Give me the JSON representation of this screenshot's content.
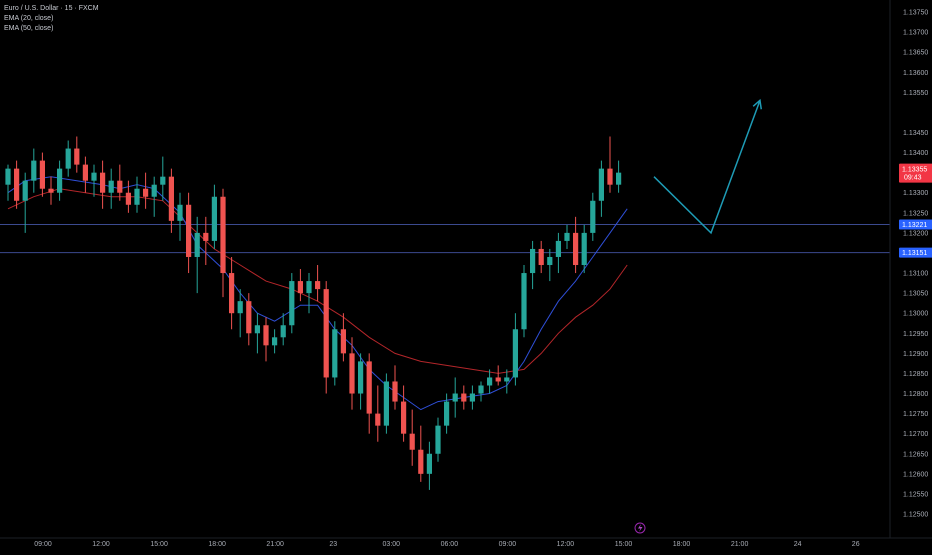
{
  "legend": {
    "symbol": "Euro / U.S. Dollar · 15 · FXCM",
    "ema20": "EMA (20, close)",
    "ema50": "EMA (50, close)"
  },
  "colors": {
    "background": "#000000",
    "up": "#26a69a",
    "down": "#ef5350",
    "ema20": "#2f4fd8",
    "ema50": "#b3262a",
    "hline": "#3b4a8f",
    "forecast": "#1e9bb5",
    "price_tag": "#f23645",
    "level_tag": "#2962ff"
  },
  "chart_data": {
    "type": "candlestick",
    "symbol": "Euro / U.S. Dollar",
    "interval": "15",
    "source": "FXCM",
    "ylim": [
      1.125,
      1.1376
    ],
    "y_ticks": [
      "1.13750",
      "1.13700",
      "1.13650",
      "1.13600",
      "1.13550",
      "1.13450",
      "1.13400",
      "1.13300",
      "1.13250",
      "1.13200",
      "1.13100",
      "1.13050",
      "1.13000",
      "1.12950",
      "1.12900",
      "1.12850",
      "1.12800",
      "1.12750",
      "1.12700",
      "1.12650",
      "1.12600",
      "1.12550",
      "1.12500"
    ],
    "x_ticks": [
      {
        "label": "09:00",
        "t": 0.38
      },
      {
        "label": "12:00",
        "t": 3.38
      },
      {
        "label": "15:00",
        "t": 6.38
      },
      {
        "label": "18:00",
        "t": 9.38
      },
      {
        "label": "21:00",
        "t": 12.38
      },
      {
        "label": "23",
        "t": 15.38
      },
      {
        "label": "03:00",
        "t": 18.38
      },
      {
        "label": "06:00",
        "t": 21.38
      },
      {
        "label": "09:00",
        "t": 24.38
      },
      {
        "label": "12:00",
        "t": 27.38
      },
      {
        "label": "15:00",
        "t": 30.38
      },
      {
        "label": "18:00",
        "t": 33.38
      },
      {
        "label": "21:00",
        "t": 36.38
      },
      {
        "label": "24",
        "t": 39.38
      },
      {
        "label": "26",
        "t": 42.38
      }
    ],
    "candles": [
      [
        1.1332,
        1.1337,
        1.1328,
        1.1336
      ],
      [
        1.1336,
        1.1338,
        1.1326,
        1.1328
      ],
      [
        1.1328,
        1.1335,
        1.132,
        1.1333
      ],
      [
        1.1333,
        1.1341,
        1.133,
        1.1338
      ],
      [
        1.1338,
        1.134,
        1.1329,
        1.1331
      ],
      [
        1.1331,
        1.1334,
        1.1327,
        1.133
      ],
      [
        1.133,
        1.1338,
        1.1328,
        1.1336
      ],
      [
        1.1336,
        1.1343,
        1.1334,
        1.1341
      ],
      [
        1.1341,
        1.1344,
        1.1335,
        1.1337
      ],
      [
        1.1337,
        1.1339,
        1.133,
        1.1333
      ],
      [
        1.1333,
        1.1337,
        1.1329,
        1.1335
      ],
      [
        1.1335,
        1.1338,
        1.1326,
        1.133
      ],
      [
        1.133,
        1.1336,
        1.1326,
        1.1333
      ],
      [
        1.1333,
        1.1337,
        1.1328,
        1.133
      ],
      [
        1.133,
        1.1333,
        1.1325,
        1.1327
      ],
      [
        1.1327,
        1.1334,
        1.1325,
        1.1331
      ],
      [
        1.1331,
        1.1335,
        1.1326,
        1.1329
      ],
      [
        1.1329,
        1.1334,
        1.1324,
        1.1332
      ],
      [
        1.1332,
        1.1339,
        1.1328,
        1.1334
      ],
      [
        1.1334,
        1.1336,
        1.132,
        1.1323
      ],
      [
        1.1323,
        1.133,
        1.1318,
        1.1327
      ],
      [
        1.1327,
        1.133,
        1.131,
        1.1314
      ],
      [
        1.1314,
        1.1324,
        1.1305,
        1.132
      ],
      [
        1.132,
        1.1324,
        1.1312,
        1.1318
      ],
      [
        1.1318,
        1.1332,
        1.1316,
        1.1329
      ],
      [
        1.1329,
        1.1331,
        1.1304,
        1.131
      ],
      [
        1.131,
        1.1314,
        1.1296,
        1.13
      ],
      [
        1.13,
        1.1306,
        1.1294,
        1.1303
      ],
      [
        1.1303,
        1.1305,
        1.1292,
        1.1295
      ],
      [
        1.1295,
        1.13,
        1.129,
        1.1297
      ],
      [
        1.1297,
        1.1299,
        1.1288,
        1.1292
      ],
      [
        1.1292,
        1.1296,
        1.129,
        1.1294
      ],
      [
        1.1294,
        1.13,
        1.1292,
        1.1297
      ],
      [
        1.1297,
        1.131,
        1.1295,
        1.1308
      ],
      [
        1.1308,
        1.1311,
        1.1303,
        1.1305
      ],
      [
        1.1305,
        1.131,
        1.13,
        1.1308
      ],
      [
        1.1308,
        1.1312,
        1.1303,
        1.1306
      ],
      [
        1.1306,
        1.1308,
        1.128,
        1.1284
      ],
      [
        1.1284,
        1.1298,
        1.1282,
        1.1296
      ],
      [
        1.1296,
        1.13,
        1.1288,
        1.129
      ],
      [
        1.129,
        1.1294,
        1.1276,
        1.128
      ],
      [
        1.128,
        1.129,
        1.1276,
        1.1288
      ],
      [
        1.1288,
        1.129,
        1.127,
        1.1275
      ],
      [
        1.1275,
        1.1282,
        1.1268,
        1.1272
      ],
      [
        1.1272,
        1.1285,
        1.127,
        1.1283
      ],
      [
        1.1283,
        1.1287,
        1.1276,
        1.1278
      ],
      [
        1.1278,
        1.1282,
        1.1268,
        1.127
      ],
      [
        1.127,
        1.1276,
        1.1262,
        1.1266
      ],
      [
        1.1266,
        1.1272,
        1.1258,
        1.126
      ],
      [
        1.126,
        1.1268,
        1.1256,
        1.1265
      ],
      [
        1.1265,
        1.1274,
        1.1263,
        1.1272
      ],
      [
        1.1272,
        1.128,
        1.127,
        1.1278
      ],
      [
        1.1278,
        1.1284,
        1.1274,
        1.128
      ],
      [
        1.128,
        1.1282,
        1.1276,
        1.1278
      ],
      [
        1.1278,
        1.1282,
        1.1276,
        1.128
      ],
      [
        1.128,
        1.1283,
        1.1278,
        1.1282
      ],
      [
        1.1282,
        1.1286,
        1.128,
        1.1284
      ],
      [
        1.1284,
        1.1287,
        1.1282,
        1.1283
      ],
      [
        1.1283,
        1.1286,
        1.128,
        1.1284
      ],
      [
        1.1284,
        1.13,
        1.1282,
        1.1296
      ],
      [
        1.1296,
        1.1312,
        1.1294,
        1.131
      ],
      [
        1.131,
        1.1318,
        1.1306,
        1.1316
      ],
      [
        1.1316,
        1.1318,
        1.131,
        1.1312
      ],
      [
        1.1312,
        1.1316,
        1.1308,
        1.1314
      ],
      [
        1.1314,
        1.132,
        1.131,
        1.1318
      ],
      [
        1.1318,
        1.1322,
        1.1316,
        1.132
      ],
      [
        1.132,
        1.1324,
        1.131,
        1.1312
      ],
      [
        1.1312,
        1.1322,
        1.131,
        1.132
      ],
      [
        1.132,
        1.133,
        1.1318,
        1.1328
      ],
      [
        1.1328,
        1.1338,
        1.1324,
        1.1336
      ],
      [
        1.1336,
        1.1344,
        1.133,
        1.1332
      ],
      [
        1.1332,
        1.1338,
        1.133,
        1.1335
      ]
    ],
    "ema20": [
      [
        0,
        1.133
      ],
      [
        2,
        1.1333
      ],
      [
        5,
        1.1334
      ],
      [
        8,
        1.1333
      ],
      [
        11,
        1.1332
      ],
      [
        13,
        1.1331
      ],
      [
        15,
        1.1332
      ],
      [
        17,
        1.1331
      ],
      [
        20,
        1.1325
      ],
      [
        22,
        1.1317
      ],
      [
        25,
        1.1311
      ],
      [
        27,
        1.1305
      ],
      [
        29,
        1.13
      ],
      [
        31,
        1.1298
      ],
      [
        34,
        1.1302
      ],
      [
        36,
        1.1302
      ],
      [
        38,
        1.1296
      ],
      [
        40,
        1.1292
      ],
      [
        42,
        1.1286
      ],
      [
        44,
        1.1282
      ],
      [
        46,
        1.1279
      ],
      [
        48,
        1.1276
      ],
      [
        50,
        1.1278
      ],
      [
        53,
        1.1279
      ],
      [
        56,
        1.128
      ],
      [
        58,
        1.1282
      ],
      [
        60,
        1.1288
      ],
      [
        62,
        1.1296
      ],
      [
        64,
        1.1303
      ],
      [
        66,
        1.1308
      ],
      [
        68,
        1.1314
      ],
      [
        70,
        1.132
      ],
      [
        72,
        1.1326
      ]
    ],
    "ema50": [
      [
        0,
        1.1326
      ],
      [
        3,
        1.1329
      ],
      [
        6,
        1.1331
      ],
      [
        9,
        1.133
      ],
      [
        12,
        1.1329
      ],
      [
        15,
        1.1329
      ],
      [
        18,
        1.1328
      ],
      [
        21,
        1.1322
      ],
      [
        24,
        1.1316
      ],
      [
        27,
        1.1312
      ],
      [
        30,
        1.1308
      ],
      [
        33,
        1.1306
      ],
      [
        36,
        1.1303
      ],
      [
        39,
        1.1299
      ],
      [
        42,
        1.1294
      ],
      [
        45,
        1.129
      ],
      [
        48,
        1.1288
      ],
      [
        51,
        1.1287
      ],
      [
        54,
        1.1286
      ],
      [
        57,
        1.1285
      ],
      [
        60,
        1.1286
      ],
      [
        62,
        1.129
      ],
      [
        64,
        1.1295
      ],
      [
        66,
        1.1299
      ],
      [
        68,
        1.1302
      ],
      [
        70,
        1.1306
      ],
      [
        72,
        1.1312
      ]
    ],
    "hlines": [
      {
        "price": 1.13221,
        "label": "1.13221"
      },
      {
        "price": 1.13151,
        "label": "1.13151"
      }
    ],
    "last_price": {
      "price": 1.13355,
      "label": "1.13355",
      "countdown": "09:43"
    },
    "forecast_path": [
      [
        0,
        1.1334
      ],
      [
        3.5,
        1.132
      ],
      [
        6.5,
        1.1353
      ]
    ],
    "forecast_arrow": true
  }
}
